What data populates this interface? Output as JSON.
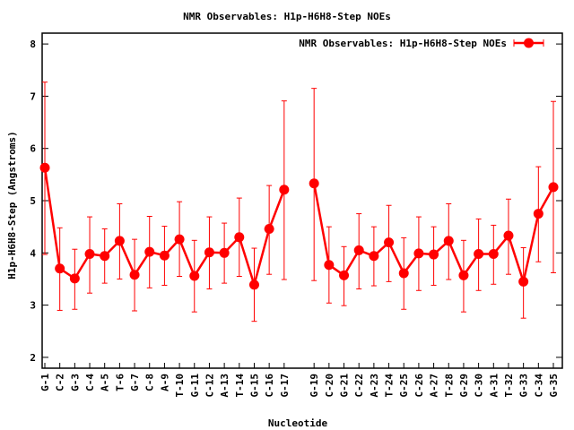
{
  "chart_data": {
    "type": "line",
    "title": "NMR Observables: H1p-H6H8-Step NOEs",
    "xlabel": "Nucleotide",
    "ylabel": "H1p-H6H8-Step (Angstroms)",
    "ylim": [
      1.8,
      8.2
    ],
    "yticks": [
      2,
      3,
      4,
      5,
      6,
      7,
      8
    ],
    "grid": false,
    "legend_position": "top-right",
    "error_bars": true,
    "color": "#ff0000",
    "series": [
      {
        "name": "NMR Observables: H1p-H6H8-Step NOEs",
        "points": [
          {
            "i": 1,
            "label": "G-1",
            "y": 5.63,
            "ymin": 3.97,
            "ymax": 7.27
          },
          {
            "i": 2,
            "label": "C-2",
            "y": 3.7,
            "ymin": 2.9,
            "ymax": 4.48
          },
          {
            "i": 3,
            "label": "G-3",
            "y": 3.51,
            "ymin": 2.92,
            "ymax": 4.07
          },
          {
            "i": 4,
            "label": "C-4",
            "y": 3.98,
            "ymin": 3.23,
            "ymax": 4.69
          },
          {
            "i": 5,
            "label": "A-5",
            "y": 3.94,
            "ymin": 3.42,
            "ymax": 4.46
          },
          {
            "i": 6,
            "label": "T-6",
            "y": 4.23,
            "ymin": 3.5,
            "ymax": 4.94
          },
          {
            "i": 7,
            "label": "G-7",
            "y": 3.58,
            "ymin": 2.89,
            "ymax": 4.26
          },
          {
            "i": 8,
            "label": "C-8",
            "y": 4.02,
            "ymin": 3.33,
            "ymax": 4.7
          },
          {
            "i": 9,
            "label": "A-9",
            "y": 3.95,
            "ymin": 3.38,
            "ymax": 4.51
          },
          {
            "i": 10,
            "label": "T-10",
            "y": 4.26,
            "ymin": 3.55,
            "ymax": 4.98
          },
          {
            "i": 11,
            "label": "G-11",
            "y": 3.56,
            "ymin": 2.87,
            "ymax": 4.24
          },
          {
            "i": 12,
            "label": "C-12",
            "y": 4.01,
            "ymin": 3.31,
            "ymax": 4.69
          },
          {
            "i": 13,
            "label": "A-13",
            "y": 4.0,
            "ymin": 3.42,
            "ymax": 4.57
          },
          {
            "i": 14,
            "label": "T-14",
            "y": 4.3,
            "ymin": 3.55,
            "ymax": 5.05
          },
          {
            "i": 15,
            "label": "G-15",
            "y": 3.39,
            "ymin": 2.69,
            "ymax": 4.09
          },
          {
            "i": 16,
            "label": "C-16",
            "y": 4.46,
            "ymin": 3.59,
            "ymax": 5.29
          },
          {
            "i": 17,
            "label": "G-17",
            "y": 5.21,
            "ymin": 3.49,
            "ymax": 6.91
          },
          {
            "i": 19,
            "label": "G-19",
            "y": 5.33,
            "ymin": 3.47,
            "ymax": 7.15
          },
          {
            "i": 20,
            "label": "C-20",
            "y": 3.77,
            "ymin": 3.04,
            "ymax": 4.5
          },
          {
            "i": 21,
            "label": "G-21",
            "y": 3.57,
            "ymin": 2.99,
            "ymax": 4.12
          },
          {
            "i": 22,
            "label": "C-22",
            "y": 4.05,
            "ymin": 3.31,
            "ymax": 4.75
          },
          {
            "i": 23,
            "label": "A-23",
            "y": 3.94,
            "ymin": 3.37,
            "ymax": 4.5
          },
          {
            "i": 24,
            "label": "T-24",
            "y": 4.2,
            "ymin": 3.45,
            "ymax": 4.91
          },
          {
            "i": 25,
            "label": "G-25",
            "y": 3.61,
            "ymin": 2.92,
            "ymax": 4.29
          },
          {
            "i": 26,
            "label": "C-26",
            "y": 3.99,
            "ymin": 3.28,
            "ymax": 4.69
          },
          {
            "i": 27,
            "label": "A-27",
            "y": 3.97,
            "ymin": 3.38,
            "ymax": 4.5
          },
          {
            "i": 28,
            "label": "T-28",
            "y": 4.23,
            "ymin": 3.49,
            "ymax": 4.94
          },
          {
            "i": 29,
            "label": "G-29",
            "y": 3.57,
            "ymin": 2.87,
            "ymax": 4.24
          },
          {
            "i": 30,
            "label": "C-30",
            "y": 3.98,
            "ymin": 3.28,
            "ymax": 4.65
          },
          {
            "i": 31,
            "label": "A-31",
            "y": 3.98,
            "ymin": 3.4,
            "ymax": 4.53
          },
          {
            "i": 32,
            "label": "T-32",
            "y": 4.33,
            "ymin": 3.59,
            "ymax": 5.03
          },
          {
            "i": 33,
            "label": "G-33",
            "y": 3.45,
            "ymin": 2.75,
            "ymax": 4.1
          },
          {
            "i": 34,
            "label": "C-34",
            "y": 4.75,
            "ymin": 3.83,
            "ymax": 5.65
          },
          {
            "i": 35,
            "label": "G-35",
            "y": 5.26,
            "ymin": 3.62,
            "ymax": 6.9
          }
        ]
      }
    ]
  }
}
